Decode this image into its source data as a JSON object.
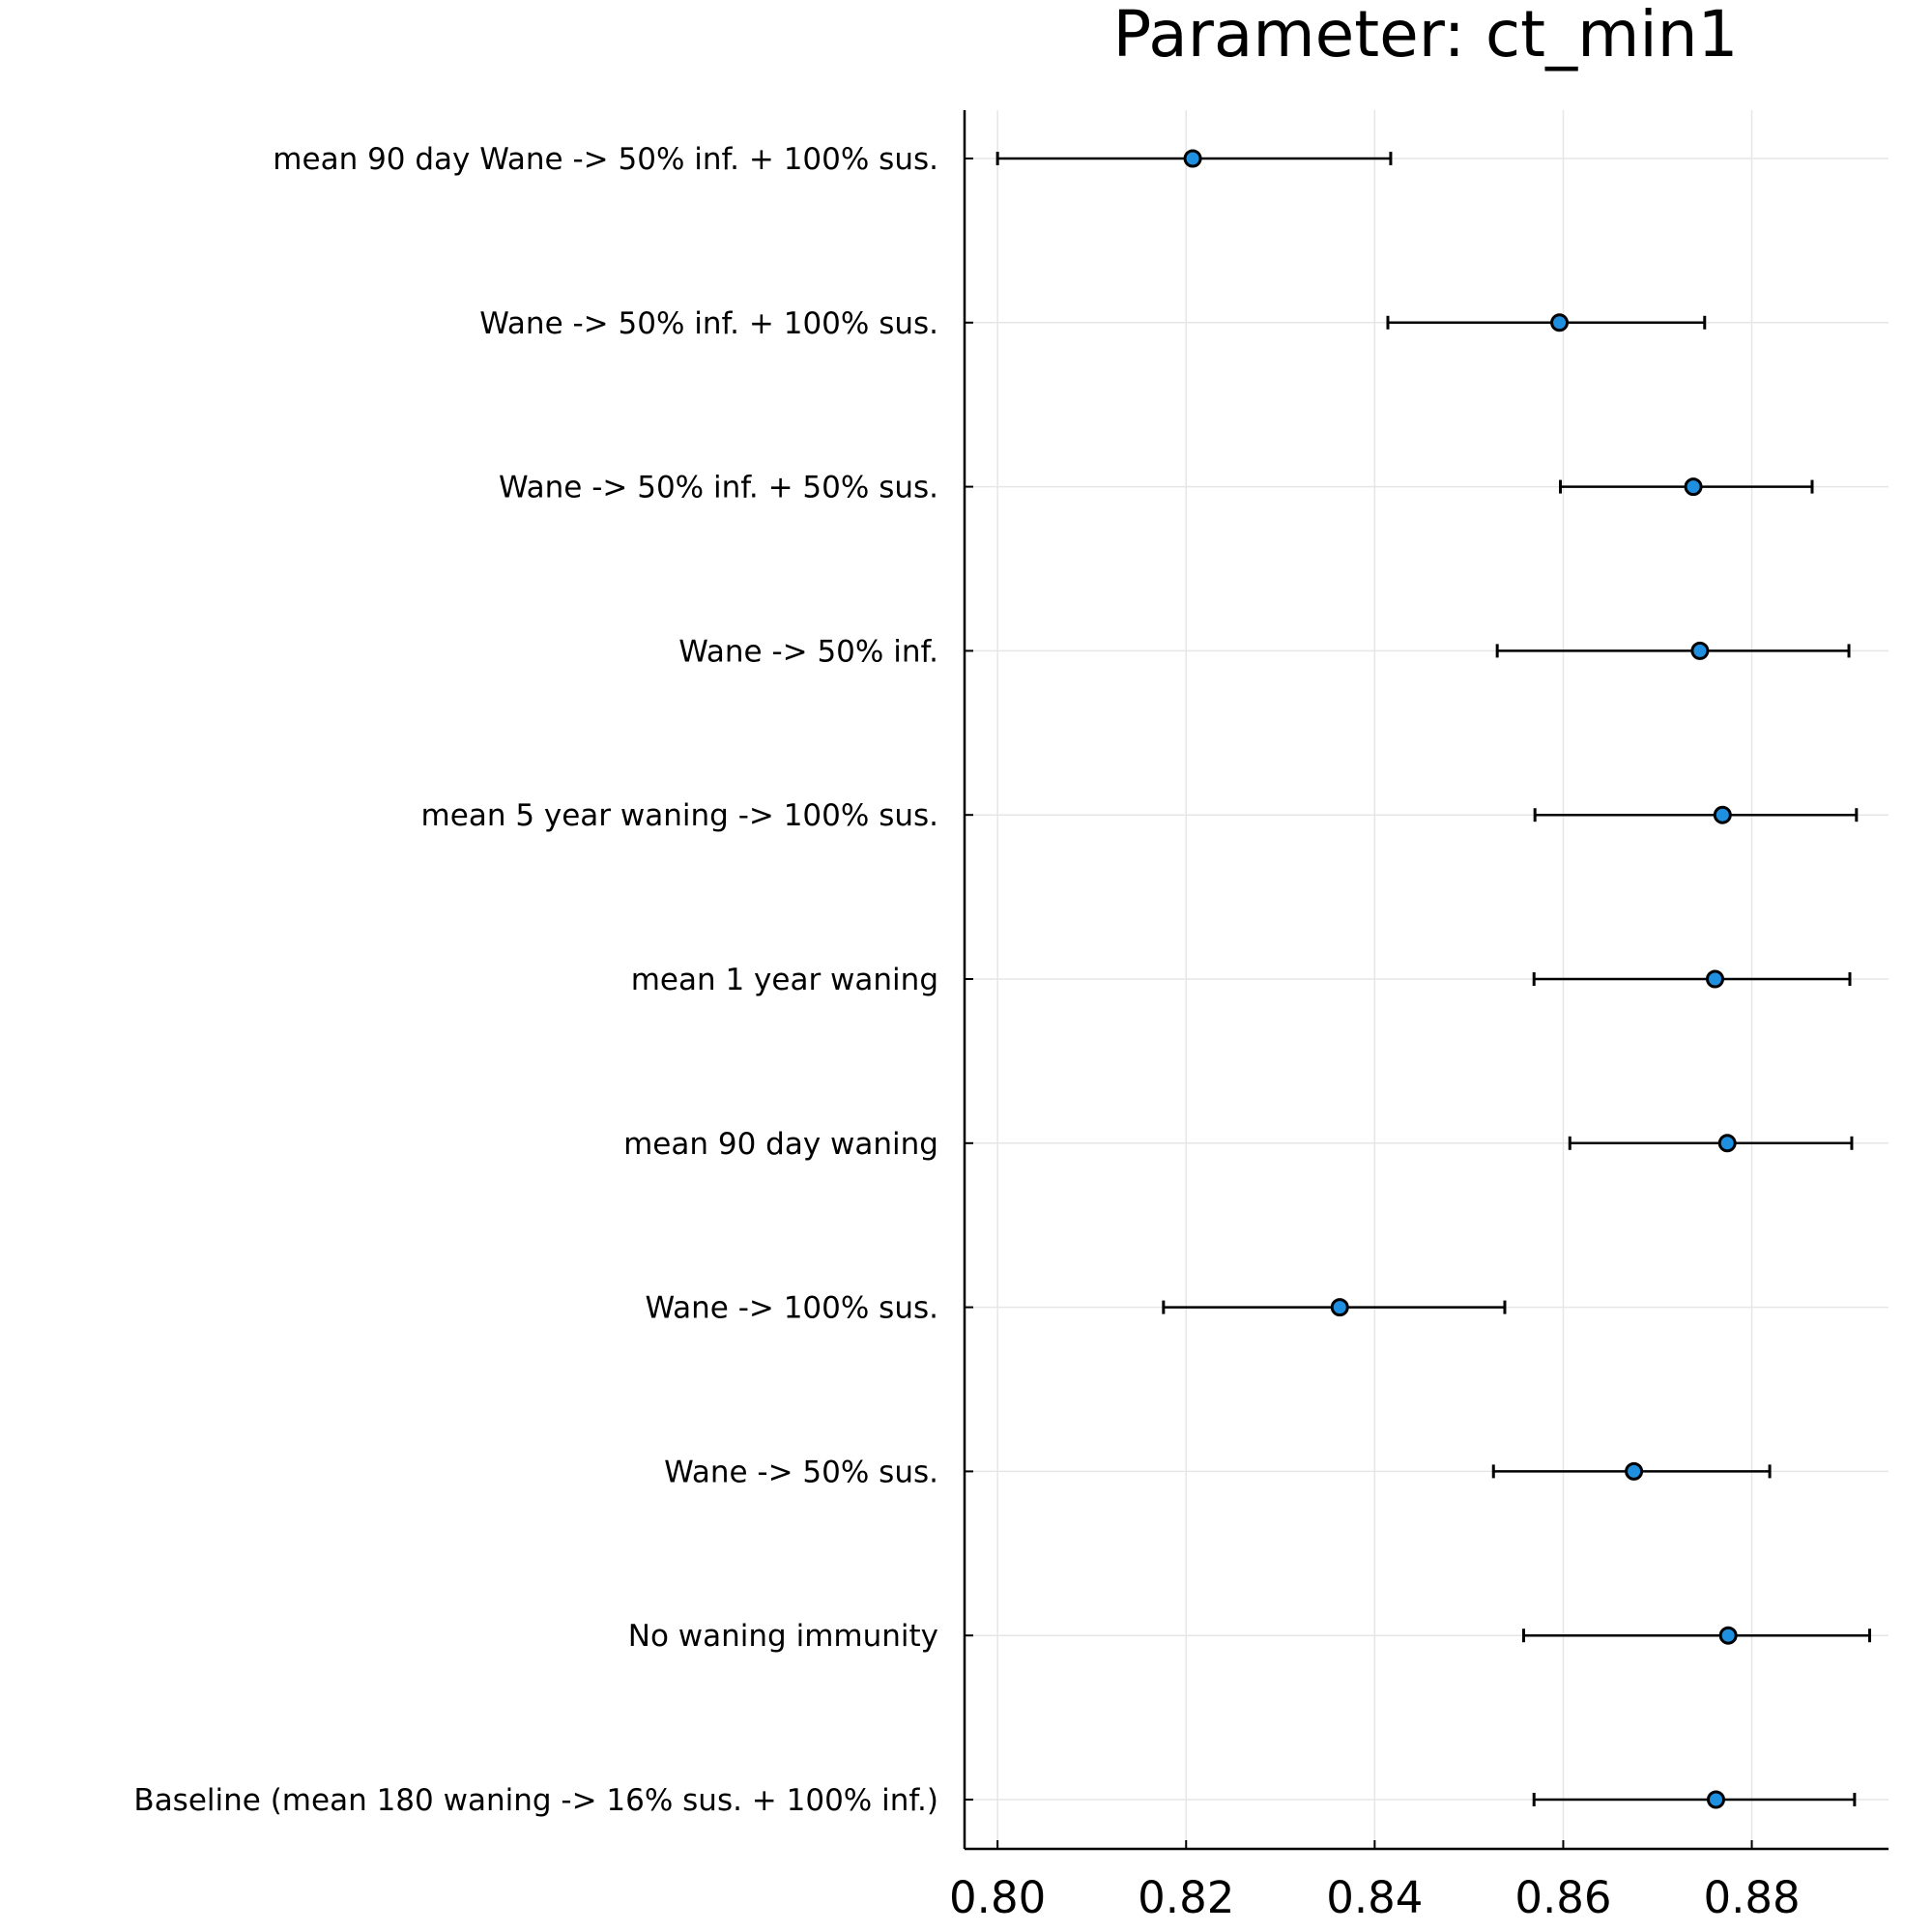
{
  "chart_data": {
    "type": "scatter",
    "title": "Parameter: ct_min1",
    "xlabel": "",
    "ylabel": "",
    "xlim": [
      0.7965,
      0.8945
    ],
    "xticks": [
      "0.80",
      "0.82",
      "0.84",
      "0.86",
      "0.88"
    ],
    "grid": true,
    "legend": "none",
    "error_bars": "horizontal",
    "colors": {
      "marker_fill": "#1f8fe0",
      "marker_edge": "#000000",
      "errorbar": "#000000",
      "grid": "#e6e6e6",
      "axis": "#000000"
    },
    "series": [
      {
        "points": [
          {
            "label": "mean 90 day Wane -> 50% inf. + 100% sus.",
            "estimate": 0.8207,
            "lower": 0.8,
            "upper": 0.8417
          },
          {
            "label": "Wane -> 50% inf. + 100% sus.",
            "estimate": 0.8596,
            "lower": 0.8414,
            "upper": 0.875
          },
          {
            "label": "Wane -> 50% inf. + 50% sus.",
            "estimate": 0.8738,
            "lower": 0.8597,
            "upper": 0.8864
          },
          {
            "label": "Wane -> 50% inf.",
            "estimate": 0.8745,
            "lower": 0.853,
            "upper": 0.8903
          },
          {
            "label": "mean 5 year waning -> 100% sus.",
            "estimate": 0.8769,
            "lower": 0.857,
            "upper": 0.8911
          },
          {
            "label": "mean 1 year waning",
            "estimate": 0.8761,
            "lower": 0.8569,
            "upper": 0.8904
          },
          {
            "label": "mean 90 day waning",
            "estimate": 0.8774,
            "lower": 0.8607,
            "upper": 0.8906
          },
          {
            "label": "Wane -> 100% sus.",
            "estimate": 0.8363,
            "lower": 0.8176,
            "upper": 0.8538
          },
          {
            "label": "Wane -> 50% sus.",
            "estimate": 0.8675,
            "lower": 0.8526,
            "upper": 0.8819
          },
          {
            "label": "No waning immunity",
            "estimate": 0.8775,
            "lower": 0.8558,
            "upper": 0.8925
          },
          {
            "label": "Baseline (mean 180 waning -> 16% sus. + 100% inf.)",
            "estimate": 0.8762,
            "lower": 0.8569,
            "upper": 0.8909
          }
        ]
      }
    ]
  }
}
